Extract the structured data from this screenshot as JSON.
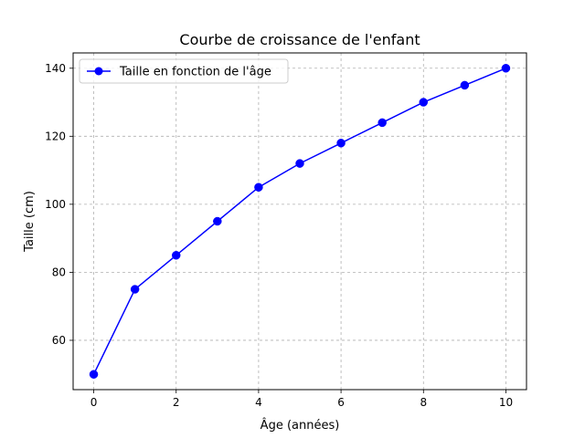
{
  "chart_data": {
    "type": "line",
    "title": "Courbe de croissance de l'enfant",
    "xlabel": "Âge (années)",
    "ylabel": "Taille (cm)",
    "xlim": [
      -0.5,
      10.5
    ],
    "ylim": [
      45.5,
      144.5
    ],
    "xticks": [
      0,
      2,
      4,
      6,
      8,
      10
    ],
    "yticks": [
      60,
      80,
      100,
      120,
      140
    ],
    "grid": true,
    "legend_position": "top-left",
    "series": [
      {
        "name": "Taille en fonction de l'âge",
        "color": "#0000ff",
        "marker": "circle",
        "x": [
          0,
          1,
          2,
          3,
          4,
          5,
          6,
          7,
          8,
          9,
          10
        ],
        "y": [
          50,
          75,
          85,
          95,
          105,
          112,
          118,
          124,
          130,
          135,
          140
        ]
      }
    ]
  }
}
